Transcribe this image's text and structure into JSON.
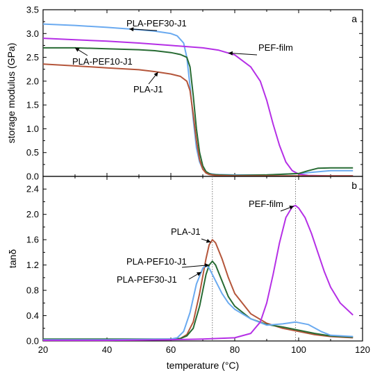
{
  "chart_data": [
    {
      "type": "line",
      "panel_label": "a",
      "xlabel": "",
      "ylabel": "storage modulus (GPa)",
      "xlim": [
        20,
        120
      ],
      "ylim": [
        0,
        3.5
      ],
      "yticks": [
        "0.0",
        "0.5",
        "1.0",
        "1.5",
        "2.0",
        "2.5",
        "3.0",
        "3.5"
      ],
      "yticks_values": [
        0,
        0.5,
        1.0,
        1.5,
        2.0,
        2.5,
        3.0,
        3.5
      ],
      "series": [
        {
          "name": "PLA-PEF30-J1",
          "color": "#6aaaf0",
          "x": [
            20,
            30,
            40,
            50,
            55,
            60,
            62,
            64,
            65,
            66,
            67,
            68,
            69,
            70,
            71,
            72,
            74,
            80,
            90,
            100,
            105,
            110,
            117
          ],
          "y": [
            3.2,
            3.17,
            3.13,
            3.08,
            3.05,
            3.0,
            2.95,
            2.8,
            2.5,
            1.9,
            1.2,
            0.6,
            0.3,
            0.15,
            0.09,
            0.06,
            0.04,
            0.03,
            0.03,
            0.06,
            0.09,
            0.12,
            0.12
          ]
        },
        {
          "name": "PEF-film",
          "color": "#b52fe6",
          "x": [
            20,
            30,
            40,
            50,
            60,
            70,
            75,
            80,
            85,
            88,
            90,
            92,
            94,
            96,
            98,
            100,
            103,
            110,
            117
          ],
          "y": [
            2.9,
            2.87,
            2.84,
            2.8,
            2.75,
            2.7,
            2.65,
            2.55,
            2.3,
            2.0,
            1.6,
            1.1,
            0.65,
            0.3,
            0.12,
            0.05,
            0.02,
            0.01,
            0.01
          ]
        },
        {
          "name": "PLA-PEF10-J1",
          "color": "#276b33",
          "x": [
            20,
            30,
            40,
            50,
            55,
            60,
            63,
            65,
            66,
            67,
            68,
            69,
            70,
            71,
            72,
            73,
            75,
            80,
            90,
            100,
            103,
            106,
            110,
            117
          ],
          "y": [
            2.7,
            2.7,
            2.68,
            2.66,
            2.64,
            2.6,
            2.56,
            2.5,
            2.3,
            1.7,
            1.0,
            0.5,
            0.22,
            0.1,
            0.06,
            0.04,
            0.03,
            0.02,
            0.03,
            0.06,
            0.12,
            0.17,
            0.18,
            0.18
          ]
        },
        {
          "name": "PLA-J1",
          "color": "#b4553a",
          "x": [
            20,
            30,
            40,
            50,
            55,
            60,
            63,
            65,
            66,
            67,
            68,
            69,
            70,
            71,
            72,
            74,
            80,
            90,
            100,
            110,
            117
          ],
          "y": [
            2.36,
            2.32,
            2.28,
            2.24,
            2.2,
            2.15,
            2.1,
            2.0,
            1.8,
            1.3,
            0.75,
            0.35,
            0.15,
            0.07,
            0.04,
            0.02,
            0.01,
            0.01,
            0.01,
            0.01,
            0.01
          ]
        }
      ],
      "annotations": [
        {
          "text": "PLA-PEF30-J1",
          "series": "PLA-PEF30-J1"
        },
        {
          "text": "PEF-film",
          "series": "PEF-film"
        },
        {
          "text": "PLA-PEF10-J1",
          "series": "PLA-PEF10-J1"
        },
        {
          "text": "PLA-J1",
          "series": "PLA-J1"
        }
      ],
      "grid": false
    },
    {
      "type": "line",
      "panel_label": "b",
      "xlabel": "temperature (°C)",
      "ylabel": "tanδ",
      "xlim": [
        20,
        120
      ],
      "ylim": [
        0,
        2.6
      ],
      "xticks": [
        "20",
        "40",
        "60",
        "80",
        "100",
        "120"
      ],
      "xticks_values": [
        20,
        40,
        60,
        80,
        100,
        120
      ],
      "yticks": [
        "0.0",
        "0.4",
        "0.8",
        "1.2",
        "1.6",
        "2.0",
        "2.4"
      ],
      "yticks_values": [
        0,
        0.4,
        0.8,
        1.2,
        1.6,
        2.0,
        2.4
      ],
      "vlines_x": [
        73,
        99
      ],
      "series": [
        {
          "name": "PLA-J1",
          "color": "#b4553a",
          "x": [
            20,
            40,
            60,
            63,
            65,
            67,
            69,
            71,
            72,
            73,
            74,
            76,
            78,
            80,
            85,
            90,
            95,
            100,
            105,
            110,
            117
          ],
          "y": [
            0.01,
            0.01,
            0.02,
            0.04,
            0.1,
            0.3,
            0.75,
            1.3,
            1.52,
            1.6,
            1.55,
            1.3,
            1.0,
            0.75,
            0.43,
            0.28,
            0.2,
            0.15,
            0.1,
            0.07,
            0.05
          ]
        },
        {
          "name": "PLA-PEF10-J1",
          "color": "#276b33",
          "x": [
            20,
            40,
            60,
            63,
            65,
            67,
            69,
            71,
            72,
            73,
            74,
            76,
            78,
            80,
            85,
            90,
            95,
            100,
            105,
            110,
            117
          ],
          "y": [
            0.03,
            0.03,
            0.03,
            0.04,
            0.08,
            0.2,
            0.55,
            1.05,
            1.2,
            1.26,
            1.2,
            0.95,
            0.7,
            0.55,
            0.35,
            0.26,
            0.22,
            0.17,
            0.12,
            0.08,
            0.06
          ]
        },
        {
          "name": "PLA-PEF30-J1",
          "color": "#6aaaf0",
          "x": [
            20,
            40,
            60,
            62,
            64,
            66,
            68,
            70,
            71,
            72,
            74,
            76,
            78,
            80,
            85,
            90,
            95,
            99,
            103,
            107,
            110,
            117
          ],
          "y": [
            0.02,
            0.02,
            0.03,
            0.05,
            0.15,
            0.45,
            0.9,
            1.15,
            1.2,
            1.15,
            0.95,
            0.75,
            0.6,
            0.5,
            0.35,
            0.25,
            0.27,
            0.3,
            0.26,
            0.15,
            0.09,
            0.07
          ]
        },
        {
          "name": "PEF-film",
          "color": "#b52fe6",
          "x": [
            20,
            40,
            60,
            70,
            80,
            85,
            88,
            90,
            92,
            94,
            96,
            98,
            99,
            100,
            102,
            104,
            106,
            108,
            110,
            113,
            117
          ],
          "y": [
            0.01,
            0.01,
            0.02,
            0.03,
            0.05,
            0.12,
            0.3,
            0.6,
            1.05,
            1.55,
            1.95,
            2.12,
            2.14,
            2.1,
            1.95,
            1.7,
            1.4,
            1.1,
            0.85,
            0.6,
            0.41
          ]
        }
      ],
      "annotations": [
        {
          "text": "PLA-J1",
          "series": "PLA-J1"
        },
        {
          "text": "PLA-PEF10-J1",
          "series": "PLA-PEF10-J1"
        },
        {
          "text": "PLA-PEF30-J1",
          "series": "PLA-PEF30-J1"
        },
        {
          "text": "PEF-film",
          "series": "PEF-film"
        }
      ],
      "grid": false
    }
  ]
}
